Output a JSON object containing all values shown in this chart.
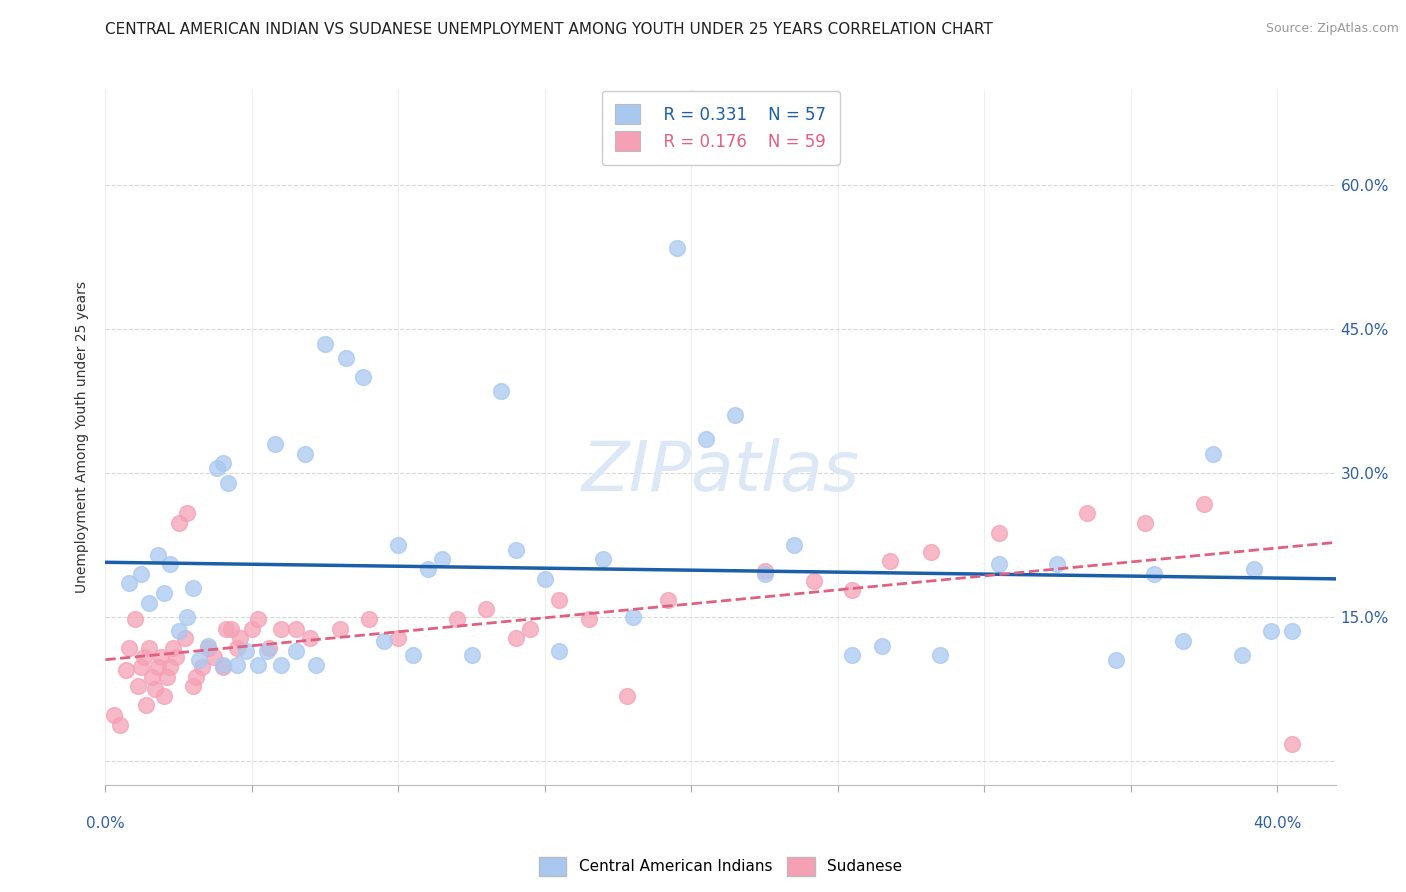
{
  "title": "CENTRAL AMERICAN INDIAN VS SUDANESE UNEMPLOYMENT AMONG YOUTH UNDER 25 YEARS CORRELATION CHART",
  "source": "Source: ZipAtlas.com",
  "ylabel": "Unemployment Among Youth under 25 years",
  "right_yticks": [
    0.0,
    0.15,
    0.3,
    0.45,
    0.6
  ],
  "right_yticklabels": [
    "",
    "15.0%",
    "30.0%",
    "45.0%",
    "60.0%"
  ],
  "xmin": 0.0,
  "xmax": 0.42,
  "ymin": -0.025,
  "ymax": 0.7,
  "legend_blue_R": "R = 0.331",
  "legend_blue_N": "N = 57",
  "legend_pink_R": "R = 0.176",
  "legend_pink_N": "N = 59",
  "watermark": "ZIPatlas",
  "blue_scatter_x": [
    0.008,
    0.012,
    0.015,
    0.018,
    0.02,
    0.022,
    0.025,
    0.028,
    0.03,
    0.032,
    0.035,
    0.038,
    0.04,
    0.04,
    0.042,
    0.045,
    0.048,
    0.052,
    0.055,
    0.058,
    0.06,
    0.065,
    0.068,
    0.072,
    0.075,
    0.082,
    0.088,
    0.095,
    0.1,
    0.105,
    0.11,
    0.115,
    0.125,
    0.135,
    0.14,
    0.15,
    0.155,
    0.17,
    0.18,
    0.195,
    0.205,
    0.215,
    0.225,
    0.235,
    0.255,
    0.265,
    0.285,
    0.305,
    0.325,
    0.345,
    0.358,
    0.368,
    0.378,
    0.388,
    0.392,
    0.398,
    0.405
  ],
  "blue_scatter_y": [
    0.185,
    0.195,
    0.165,
    0.215,
    0.175,
    0.205,
    0.135,
    0.15,
    0.18,
    0.105,
    0.12,
    0.305,
    0.31,
    0.1,
    0.29,
    0.1,
    0.115,
    0.1,
    0.115,
    0.33,
    0.1,
    0.115,
    0.32,
    0.1,
    0.435,
    0.42,
    0.4,
    0.125,
    0.225,
    0.11,
    0.2,
    0.21,
    0.11,
    0.385,
    0.22,
    0.19,
    0.115,
    0.21,
    0.15,
    0.535,
    0.335,
    0.36,
    0.195,
    0.225,
    0.11,
    0.12,
    0.11,
    0.205,
    0.205,
    0.105,
    0.195,
    0.125,
    0.32,
    0.11,
    0.2,
    0.135,
    0.135
  ],
  "pink_scatter_x": [
    0.003,
    0.005,
    0.007,
    0.008,
    0.01,
    0.011,
    0.012,
    0.013,
    0.014,
    0.015,
    0.016,
    0.017,
    0.018,
    0.019,
    0.02,
    0.021,
    0.022,
    0.023,
    0.024,
    0.025,
    0.027,
    0.028,
    0.03,
    0.031,
    0.033,
    0.035,
    0.037,
    0.04,
    0.041,
    0.043,
    0.045,
    0.046,
    0.05,
    0.052,
    0.056,
    0.06,
    0.065,
    0.07,
    0.08,
    0.09,
    0.1,
    0.12,
    0.13,
    0.14,
    0.145,
    0.155,
    0.165,
    0.178,
    0.192,
    0.225,
    0.242,
    0.255,
    0.268,
    0.282,
    0.305,
    0.335,
    0.355,
    0.375,
    0.405
  ],
  "pink_scatter_y": [
    0.048,
    0.038,
    0.095,
    0.118,
    0.148,
    0.078,
    0.098,
    0.108,
    0.058,
    0.118,
    0.088,
    0.075,
    0.098,
    0.108,
    0.068,
    0.088,
    0.098,
    0.118,
    0.108,
    0.248,
    0.128,
    0.258,
    0.078,
    0.088,
    0.098,
    0.118,
    0.108,
    0.098,
    0.138,
    0.138,
    0.118,
    0.128,
    0.138,
    0.148,
    0.118,
    0.138,
    0.138,
    0.128,
    0.138,
    0.148,
    0.128,
    0.148,
    0.158,
    0.128,
    0.138,
    0.168,
    0.148,
    0.068,
    0.168,
    0.198,
    0.188,
    0.178,
    0.208,
    0.218,
    0.238,
    0.258,
    0.248,
    0.268,
    0.018
  ],
  "blue_color": "#a8c8f0",
  "pink_color": "#f5a0b5",
  "blue_line_color": "#1a5fa8",
  "pink_line_color": "#e06080",
  "grid_color": "#d8d8d8",
  "background_color": "#ffffff",
  "title_fontsize": 11,
  "source_fontsize": 9,
  "watermark_color": "#dce8f5",
  "watermark_fontsize": 50
}
